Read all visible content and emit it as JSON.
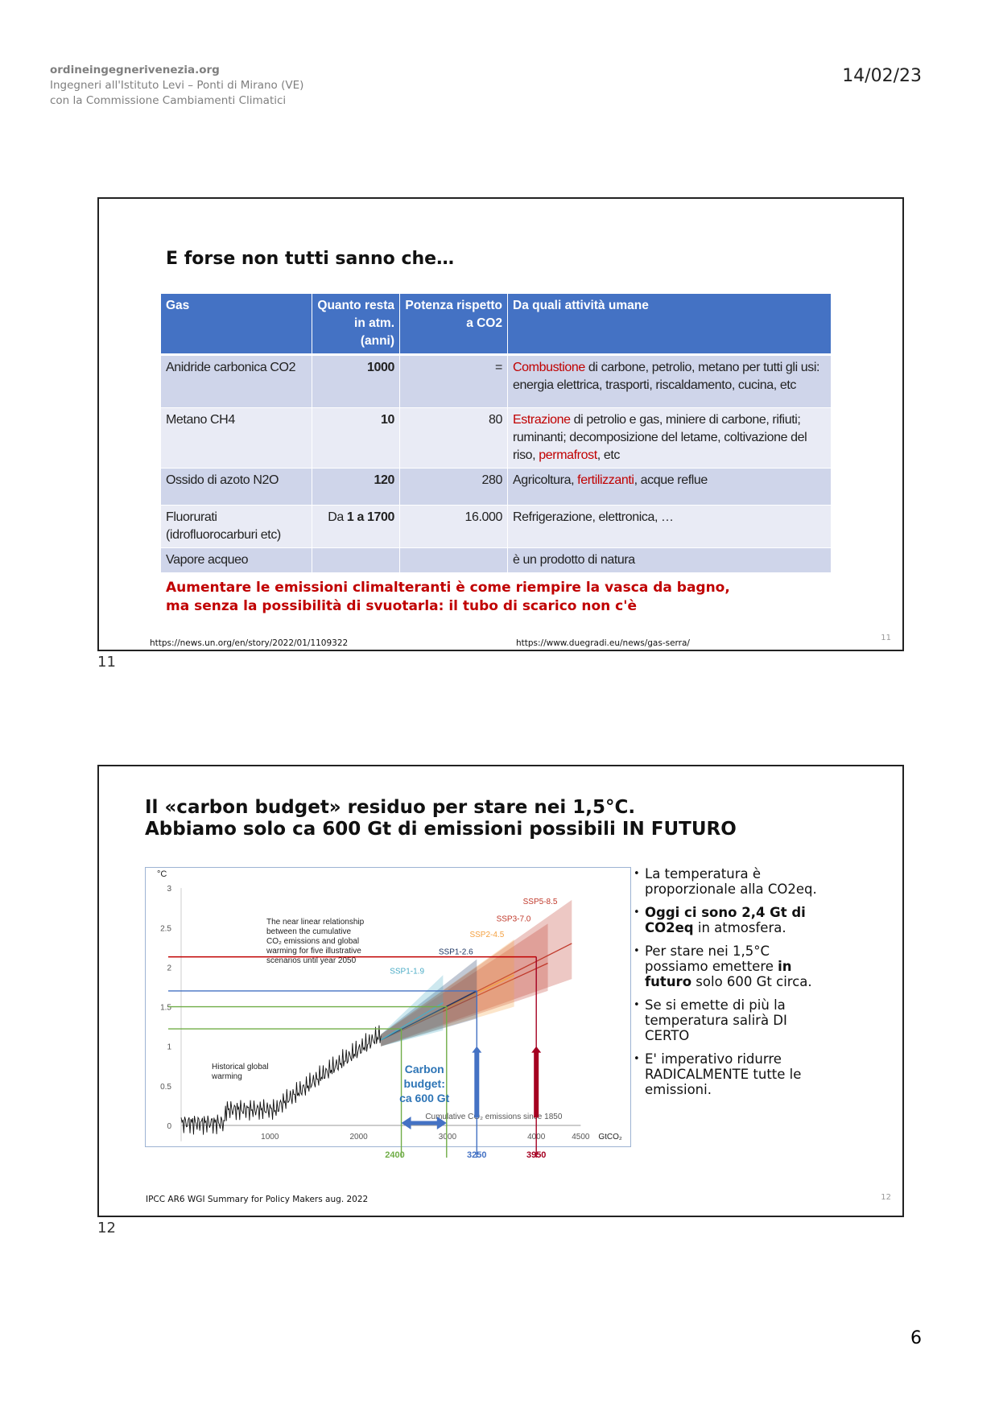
{
  "header": {
    "org": "ordineingegnerivenezia.org",
    "line2": "Ingegneri all'Istituto Levi – Ponti di Mirano (VE)",
    "line3": "con la Commissione Cambiamenti Climatici",
    "date": "14/02/23"
  },
  "slide1": {
    "title": "E forse non tutti sanno che…",
    "headers": [
      "Gas",
      "Quanto resta in atm. (anni)",
      "Potenza rispetto a CO2",
      "Da quali attività umane"
    ],
    "rows": [
      {
        "gas": "Anidride carbonica CO2",
        "life": "1000",
        "power": "=",
        "act_red": "Combustione",
        "act": " di carbone, petrolio, metano per tutti gli usi: energia elettrica, trasporti, riscaldamento, cucina, etc"
      },
      {
        "gas": "Metano CH4",
        "life": "10",
        "power": "80",
        "act_red": "Estrazione",
        "act": " di petrolio e gas, miniere di carbone, rifiuti; ruminanti; decomposizione del letame, coltivazione del riso, ",
        "act_red2": "permafrost",
        "act2": ", etc"
      },
      {
        "gas": "Ossido di azoto N2O",
        "life": "120",
        "power": "280",
        "act": "Agricoltura, ",
        "act_red": "fertilizzanti",
        "act2": ", acque reflue"
      },
      {
        "gas": "Fluorurati (idrofluorocarburi etc)",
        "life_pre": "Da ",
        "life": "1 a 1700",
        "power": "16.000",
        "act": "Refrigerazione, elettronica, …"
      },
      {
        "gas": "Vapore acqueo",
        "life": "",
        "power": "",
        "act": "è un prodotto di natura"
      }
    ],
    "warning1": "Aumentare le emissioni climalteranti è come riempire la vasca da bagno,",
    "warning2": "ma senza la possibilità di svuotarla: il tubo di scarico non c'è",
    "source1": "https://news.un.org/en/story/2022/01/1109322",
    "source2": "https://www.duegradi.eu/news/gas-serra/",
    "num": "11"
  },
  "slide1_label": "11",
  "slide2": {
    "title1": "Il «carbon budget» residuo per stare nei 1,5°C.",
    "title2": "Abbiamo solo ca 600 Gt di emissioni possibili IN FUTURO",
    "bullets": [
      {
        "t": "La temperatura è proporzionale alla CO2eq."
      },
      {
        "b": "Oggi ci sono 2,4 Gt di CO2eq",
        "t": " in atmosfera."
      },
      {
        "t": "Per stare nei 1,5°C possiamo emettere ",
        "b": "in futuro",
        "t2": " solo 600 Gt circa."
      },
      {
        "t": "Se si emette di più la temperatura salirà DI CERTO"
      },
      {
        "t": "E' imperativo ridurre RADICALMENTE tutte le emissioni."
      }
    ],
    "source": "IPCC AR6 WGI Summary for Policy Makers aug. 2022",
    "num": "12"
  },
  "slide2_label": "12",
  "page_number": "6",
  "chart_data": {
    "type": "line",
    "ylabel": "°C",
    "xunit": "GtCO₂",
    "xlabel": "Cumulative CO₂ emissions since 1850",
    "xlim": [
      0,
      4700
    ],
    "ylim": [
      -0.2,
      3
    ],
    "xticks": [
      1000,
      2000,
      3000,
      4000,
      4500
    ],
    "yticks": [
      0,
      0.5,
      1,
      1.5,
      2,
      2.5,
      3
    ],
    "annotation": [
      "The near linear relationship",
      "between the cumulative",
      "CO₂ emissions and global",
      "warming for five illustrative",
      "scenarios until year 2050"
    ],
    "historical_label": [
      "Historical global",
      "warming"
    ],
    "budget_label": [
      "Carbon",
      "budget:",
      "ca 600 Gt"
    ],
    "scenarios": [
      {
        "name": "SSP1-1.9",
        "color": "#4bacc6",
        "end_x": 2950,
        "median": 1.55,
        "low": 1.2,
        "high": 1.9
      },
      {
        "name": "SSP1-2.6",
        "color": "#1f3864",
        "end_x": 3330,
        "median": 1.7,
        "low": 1.35,
        "high": 2.1
      },
      {
        "name": "SSP2-4.5",
        "color": "#f4a040",
        "end_x": 3750,
        "median": 1.9,
        "low": 1.5,
        "high": 2.35
      },
      {
        "name": "SSP3-7.0",
        "color": "#c0392b",
        "end_x": 4130,
        "median": 2.05,
        "low": 1.7,
        "high": 2.55
      },
      {
        "name": "SSP5-8.5",
        "color": "#c0392b",
        "end_x": 4400,
        "median": 2.3,
        "low": 1.85,
        "high": 2.85
      }
    ],
    "markers": [
      {
        "label": "2400",
        "x": 2480,
        "color": "#70ad47"
      },
      {
        "label": "3250",
        "x": 3330,
        "color": "#4472c4"
      },
      {
        "label": "3950",
        "x": 4000,
        "color": "#a50021"
      }
    ],
    "hlines": [
      {
        "y": 2.13,
        "to": 4000,
        "color": "#c00000"
      },
      {
        "y": 1.7,
        "to": 3330,
        "color": "#4472c4"
      },
      {
        "y": 1.5,
        "to": 2990,
        "color": "#70ad47"
      },
      {
        "y": 1.22,
        "to": 2480,
        "color": "#70ad47"
      }
    ]
  }
}
